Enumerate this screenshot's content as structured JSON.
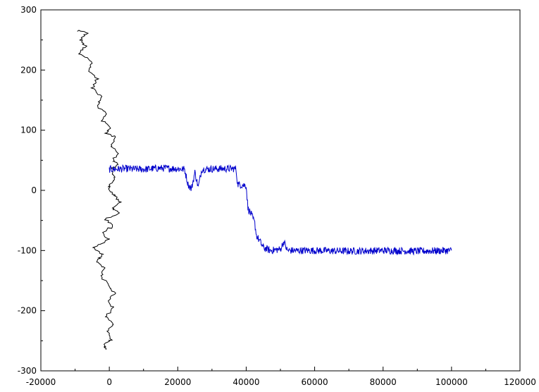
{
  "chart_data": {
    "type": "line",
    "title": "",
    "xlabel": "",
    "ylabel": "",
    "xlim": [
      -20000,
      120000
    ],
    "ylim": [
      -300,
      300
    ],
    "grid": false,
    "legend": "none",
    "x_ticks": [
      -20000,
      0,
      20000,
      40000,
      60000,
      80000,
      100000,
      120000
    ],
    "x_tick_labels": [
      "-20000",
      "0",
      "20000",
      "40000",
      "60000",
      "80000",
      "100000",
      "120000"
    ],
    "y_ticks": [
      -300,
      -200,
      -100,
      0,
      100,
      200,
      300
    ],
    "y_tick_labels": [
      "-300",
      "-200",
      "-100",
      "0",
      "100",
      "200",
      "300"
    ],
    "series": [
      {
        "color": "#000000",
        "points": [
          [
            -9500,
            265
          ],
          [
            -6500,
            262
          ],
          [
            -8500,
            250
          ],
          [
            -7000,
            240
          ],
          [
            -9000,
            228
          ],
          [
            -5000,
            215
          ],
          [
            -6000,
            200
          ],
          [
            -3500,
            185
          ],
          [
            -5000,
            170
          ],
          [
            -2000,
            155
          ],
          [
            -3500,
            140
          ],
          [
            -1000,
            128
          ],
          [
            -2000,
            115
          ],
          [
            500,
            105
          ],
          [
            -1000,
            95
          ],
          [
            2000,
            88
          ],
          [
            500,
            75
          ],
          [
            2500,
            62
          ],
          [
            1000,
            50
          ],
          [
            2500,
            42
          ],
          [
            800,
            36
          ],
          [
            1500,
            20
          ],
          [
            200,
            10
          ],
          [
            0,
            0
          ],
          [
            1500,
            -8
          ],
          [
            3000,
            -20
          ],
          [
            1000,
            -30
          ],
          [
            2500,
            -38
          ],
          [
            -1000,
            -48
          ],
          [
            1000,
            -60
          ],
          [
            -2000,
            -70
          ],
          [
            0,
            -82
          ],
          [
            -4500,
            -95
          ],
          [
            -2000,
            -105
          ],
          [
            -3500,
            -118
          ],
          [
            -1500,
            -130
          ],
          [
            -2500,
            -145
          ],
          [
            0,
            -158
          ],
          [
            1500,
            -170
          ],
          [
            -500,
            -185
          ],
          [
            1000,
            -195
          ],
          [
            -1000,
            -210
          ],
          [
            1500,
            -222
          ],
          [
            -500,
            -235
          ],
          [
            500,
            -248
          ],
          [
            -1500,
            -258
          ],
          [
            -1000,
            -265
          ]
        ]
      },
      {
        "color": "#0000cc",
        "points": [
          [
            0,
            35
          ],
          [
            5000,
            36
          ],
          [
            10000,
            35
          ],
          [
            15000,
            37
          ],
          [
            20000,
            36
          ],
          [
            22000,
            35
          ],
          [
            23000,
            10
          ],
          [
            24000,
            2
          ],
          [
            25000,
            30
          ],
          [
            26000,
            5
          ],
          [
            27000,
            35
          ],
          [
            32000,
            36
          ],
          [
            37000,
            36
          ],
          [
            37500,
            10
          ],
          [
            40000,
            8
          ],
          [
            40500,
            -30
          ],
          [
            41500,
            -40
          ],
          [
            42500,
            -55
          ],
          [
            43000,
            -75
          ],
          [
            44000,
            -85
          ],
          [
            45000,
            -95
          ],
          [
            47000,
            -100
          ],
          [
            50000,
            -98
          ],
          [
            51000,
            -85
          ],
          [
            52000,
            -100
          ],
          [
            60000,
            -100
          ],
          [
            70000,
            -101
          ],
          [
            80000,
            -100
          ],
          [
            90000,
            -101
          ],
          [
            100000,
            -100
          ]
        ],
        "noise": 6
      }
    ]
  }
}
